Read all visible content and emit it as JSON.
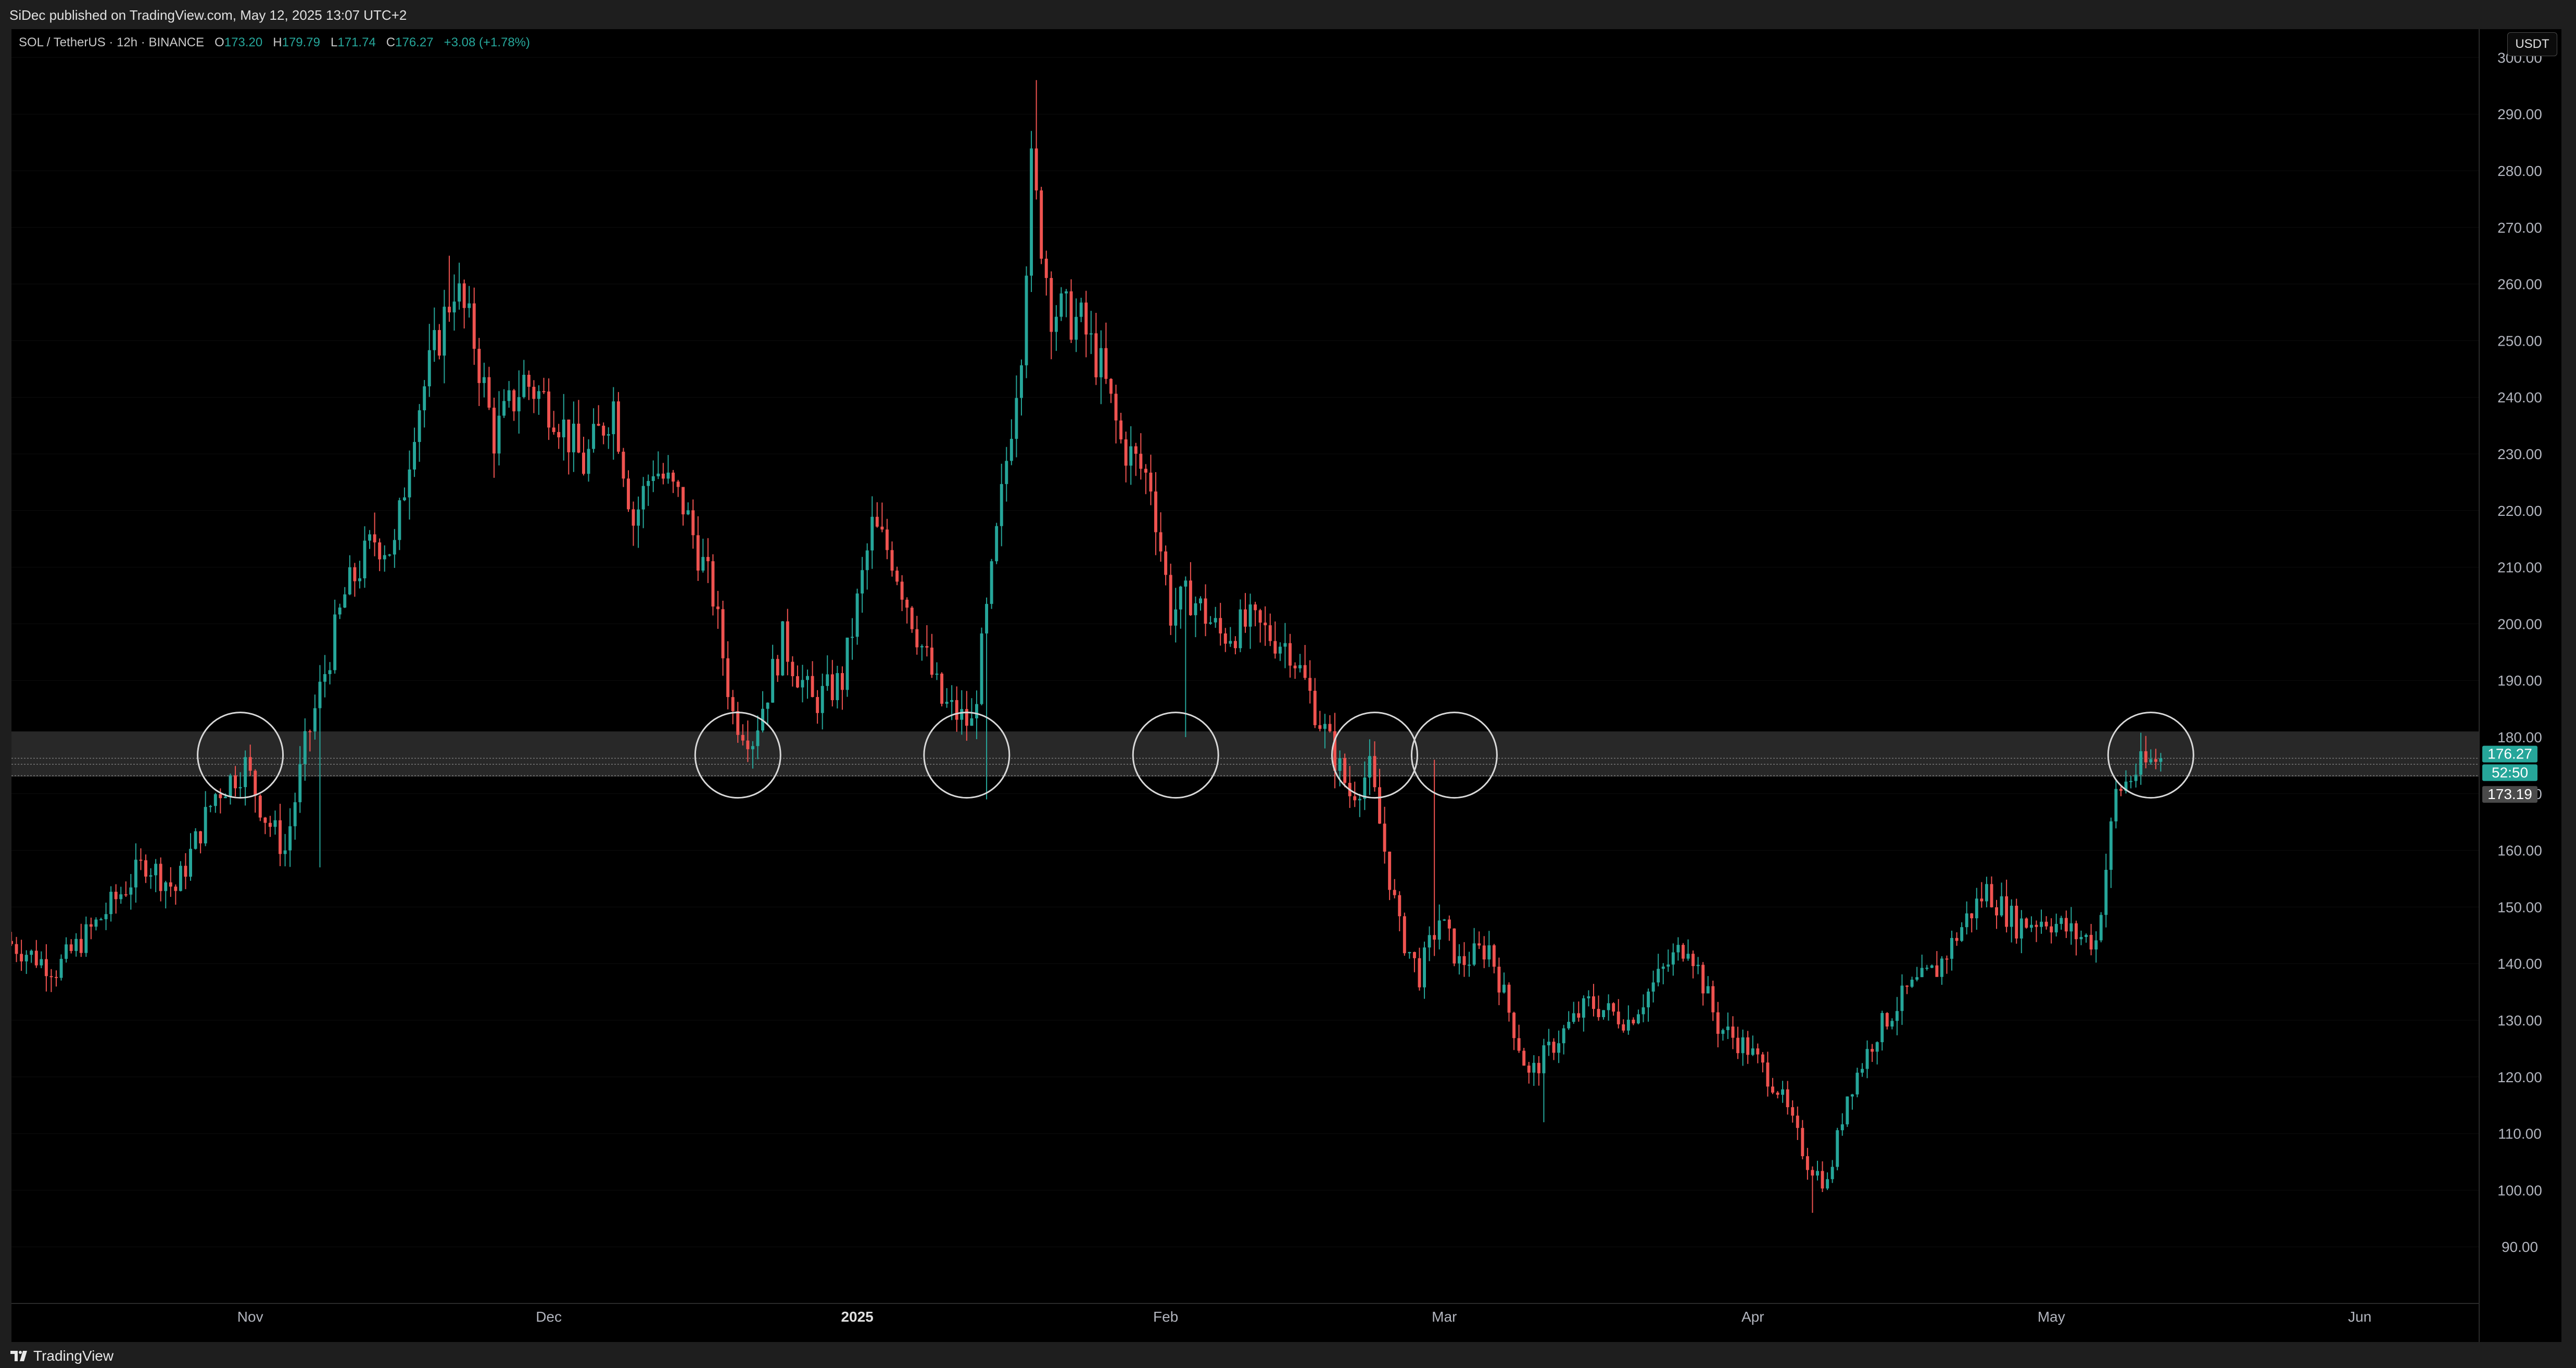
{
  "header": {
    "published": "SiDec published on TradingView.com, May 12, 2025 13:07 UTC+2"
  },
  "legend": {
    "symbol": "SOL / TetherUS · 12h · BINANCE",
    "o_label": "O",
    "o_value": "173.20",
    "h_label": "H",
    "h_value": "179.79",
    "l_label": "L",
    "l_value": "171.74",
    "c_label": "C",
    "c_value": "176.27",
    "change": "+3.08 (+1.78%)"
  },
  "currency_button": "USDT",
  "footer": {
    "brand": "TradingView"
  },
  "colors": {
    "up": "#26a69a",
    "down": "#ef5350",
    "background": "#000000",
    "zone": "#2a2a2a"
  },
  "chart_data": {
    "type": "candlestick",
    "title": "SOL / TetherUS · 12h · BINANCE",
    "interval": "12h",
    "y_axis": {
      "range": [
        80,
        305
      ],
      "ticks": [
        "300.00",
        "290.00",
        "280.00",
        "270.00",
        "260.00",
        "250.00",
        "240.00",
        "230.00",
        "220.00",
        "210.00",
        "200.00",
        "190.00",
        "180.00",
        "170.00",
        "160.00",
        "150.00",
        "140.00",
        "130.00",
        "120.00",
        "110.00",
        "100.00",
        "90.00"
      ]
    },
    "x_axis": {
      "labels": [
        {
          "text": "Nov",
          "date": "2024-11-01",
          "bold": false
        },
        {
          "text": "Dec",
          "date": "2024-12-01",
          "bold": false
        },
        {
          "text": "2025",
          "date": "2025-01-01",
          "bold": true
        },
        {
          "text": "Feb",
          "date": "2025-02-01",
          "bold": false
        },
        {
          "text": "Mar",
          "date": "2025-03-01",
          "bold": false
        },
        {
          "text": "Apr",
          "date": "2025-04-01",
          "bold": false
        },
        {
          "text": "May",
          "date": "2025-05-01",
          "bold": false
        },
        {
          "text": "Jun",
          "date": "2025-06-01",
          "bold": false
        }
      ],
      "range_start": "2024-10-08",
      "range_end": "2025-06-13"
    },
    "price_path": [
      [
        "2024-10-08",
        144
      ],
      [
        "2024-10-13",
        139
      ],
      [
        "2024-10-17",
        147
      ],
      [
        "2024-10-22",
        158
      ],
      [
        "2024-10-25",
        153
      ],
      [
        "2024-10-29",
        170
      ],
      [
        "2024-11-01",
        175
      ],
      [
        "2024-11-03",
        166
      ],
      [
        "2024-11-05",
        160
      ],
      [
        "2024-11-07",
        178
      ],
      [
        "2024-11-11",
        205
      ],
      [
        "2024-11-14",
        215
      ],
      [
        "2024-11-16",
        213
      ],
      [
        "2024-11-18",
        236
      ],
      [
        "2024-11-22",
        260
      ],
      [
        "2024-11-24",
        250
      ],
      [
        "2024-11-26",
        233
      ],
      [
        "2024-11-29",
        243
      ],
      [
        "2024-12-02",
        238
      ],
      [
        "2024-12-05",
        228
      ],
      [
        "2024-12-08",
        239
      ],
      [
        "2024-12-10",
        218
      ],
      [
        "2024-12-12",
        228
      ],
      [
        "2024-12-15",
        221
      ],
      [
        "2024-12-18",
        205
      ],
      [
        "2024-12-20",
        184
      ],
      [
        "2024-12-22",
        180
      ],
      [
        "2024-12-25",
        197
      ],
      [
        "2024-12-28",
        186
      ],
      [
        "2024-12-31",
        190
      ],
      [
        "2025-01-03",
        217
      ],
      [
        "2025-01-05",
        212
      ],
      [
        "2025-01-08",
        196
      ],
      [
        "2025-01-10",
        186
      ],
      [
        "2025-01-13",
        182
      ],
      [
        "2025-01-15",
        208
      ],
      [
        "2025-01-18",
        250
      ],
      [
        "2025-01-19",
        280
      ],
      [
        "2025-01-21",
        256
      ],
      [
        "2025-01-24",
        253
      ],
      [
        "2025-01-26",
        245
      ],
      [
        "2025-01-28",
        232
      ],
      [
        "2025-01-31",
        225
      ],
      [
        "2025-02-02",
        202
      ],
      [
        "2025-02-04",
        205
      ],
      [
        "2025-02-07",
        198
      ],
      [
        "2025-02-10",
        200
      ],
      [
        "2025-02-14",
        196
      ],
      [
        "2025-02-17",
        183
      ],
      [
        "2025-02-20",
        170
      ],
      [
        "2025-02-22",
        174
      ],
      [
        "2025-02-25",
        146
      ],
      [
        "2025-02-27",
        138
      ],
      [
        "2025-03-01",
        148
      ],
      [
        "2025-03-03",
        140
      ],
      [
        "2025-03-06",
        143
      ],
      [
        "2025-03-10",
        120
      ],
      [
        "2025-03-13",
        127
      ],
      [
        "2025-03-16",
        133
      ],
      [
        "2025-03-20",
        130
      ],
      [
        "2025-03-24",
        140
      ],
      [
        "2025-03-26",
        144
      ],
      [
        "2025-03-29",
        129
      ],
      [
        "2025-04-01",
        125
      ],
      [
        "2025-04-04",
        118
      ],
      [
        "2025-04-07",
        105
      ],
      [
        "2025-04-09",
        101
      ],
      [
        "2025-04-11",
        117
      ],
      [
        "2025-04-14",
        128
      ],
      [
        "2025-04-17",
        135
      ],
      [
        "2025-04-20",
        139
      ],
      [
        "2025-04-23",
        148
      ],
      [
        "2025-04-25",
        153
      ],
      [
        "2025-04-28",
        147
      ],
      [
        "2025-05-01",
        148
      ],
      [
        "2025-05-04",
        145
      ],
      [
        "2025-05-06",
        144
      ],
      [
        "2025-05-08",
        170
      ],
      [
        "2025-05-10",
        174
      ],
      [
        "2025-05-12",
        176
      ]
    ],
    "spikes": [
      {
        "date": "2024-11-08",
        "low": 157
      },
      {
        "date": "2024-11-21",
        "high": 265
      },
      {
        "date": "2025-01-19",
        "high": 296
      },
      {
        "date": "2025-01-14",
        "low": 169
      },
      {
        "date": "2025-02-03",
        "low": 180
      },
      {
        "date": "2025-02-28",
        "high": 176
      },
      {
        "date": "2025-03-11",
        "low": 112
      },
      {
        "date": "2025-04-07",
        "low": 96
      }
    ],
    "support_zone": {
      "low": 173,
      "high": 181
    },
    "zone_lines": [
      176.27,
      175.2,
      173.19
    ],
    "circled_touches": [
      "2024-10-31",
      "2024-12-20",
      "2025-01-12",
      "2025-02-02",
      "2025-02-22",
      "2025-03-02",
      "2025-05-11"
    ],
    "price_labels": [
      {
        "value": 176.27,
        "text": "176.27",
        "color": "#26a69a"
      },
      {
        "value": 175.0,
        "text": "52:50",
        "color": "#26a69a"
      },
      {
        "value": 173.19,
        "text": "173.19",
        "color": "#4a4a4a"
      }
    ],
    "last": {
      "open": 173.2,
      "high": 179.79,
      "low": 171.74,
      "close": 176.27
    }
  }
}
